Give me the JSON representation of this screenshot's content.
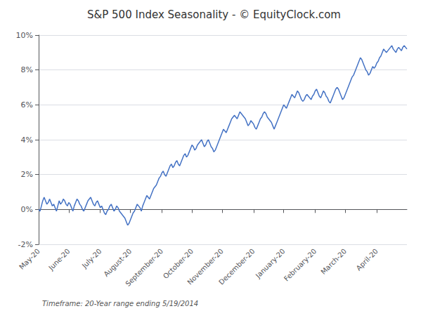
{
  "chart_data": {
    "type": "line",
    "title": "S&P 500 Index Seasonality - © EquityClock.com",
    "footnote": "Timeframe: 20-Year range ending 5/19/2014",
    "color": "#4472C4",
    "grid": true,
    "ylim": [
      -0.02,
      0.1
    ],
    "yticks": [
      {
        "value": -0.02,
        "label": "-2%"
      },
      {
        "value": 0.0,
        "label": "0%"
      },
      {
        "value": 0.02,
        "label": "2%"
      },
      {
        "value": 0.04,
        "label": "4%"
      },
      {
        "value": 0.06,
        "label": "6%"
      },
      {
        "value": 0.08,
        "label": "8%"
      },
      {
        "value": 0.1,
        "label": "10%"
      }
    ],
    "categories": [
      "May-20",
      null,
      null,
      null,
      null,
      null,
      null,
      null,
      null,
      null,
      null,
      null,
      null,
      null,
      null,
      null,
      null,
      null,
      null,
      null,
      null,
      null,
      "June-20",
      null,
      null,
      null,
      null,
      null,
      null,
      null,
      null,
      null,
      null,
      null,
      null,
      null,
      null,
      null,
      null,
      null,
      null,
      null,
      null,
      null,
      null,
      "July-20",
      null,
      null,
      null,
      null,
      null,
      null,
      null,
      null,
      null,
      null,
      null,
      null,
      null,
      null,
      null,
      null,
      null,
      null,
      null,
      null,
      null,
      "August-20",
      null,
      null,
      null,
      null,
      null,
      null,
      null,
      null,
      null,
      null,
      null,
      null,
      null,
      null,
      null,
      null,
      null,
      null,
      null,
      null,
      null,
      null,
      "September-20",
      null,
      null,
      null,
      null,
      null,
      null,
      null,
      null,
      null,
      null,
      null,
      null,
      null,
      null,
      null,
      null,
      null,
      null,
      null,
      null,
      null,
      "October-20",
      null,
      null,
      null,
      null,
      null,
      null,
      null,
      null,
      null,
      null,
      null,
      null,
      null,
      null,
      null,
      null,
      null,
      null,
      null,
      null,
      null,
      "November-20",
      null,
      null,
      null,
      null,
      null,
      null,
      null,
      null,
      null,
      null,
      null,
      null,
      null,
      null,
      null,
      null,
      null,
      null,
      null,
      null,
      null,
      null,
      "December-20",
      null,
      null,
      null,
      null,
      null,
      null,
      null,
      null,
      null,
      null,
      null,
      null,
      null,
      null,
      null,
      null,
      null,
      null,
      null,
      null,
      null,
      "January-20",
      null,
      null,
      null,
      null,
      null,
      null,
      null,
      null,
      null,
      null,
      null,
      null,
      null,
      null,
      null,
      null,
      null,
      null,
      null,
      null,
      null,
      null,
      "February-20",
      null,
      null,
      null,
      null,
      null,
      null,
      null,
      null,
      null,
      null,
      null,
      null,
      null,
      null,
      null,
      null,
      null,
      null,
      null,
      null,
      null,
      "March-20",
      null,
      null,
      null,
      null,
      null,
      null,
      null,
      null,
      null,
      null,
      null,
      null,
      null,
      null,
      null,
      null,
      null,
      null,
      null,
      null,
      null,
      null,
      "April-20",
      null,
      null,
      null,
      null,
      null,
      null,
      null,
      null,
      null,
      null,
      null,
      null,
      null,
      null,
      null,
      null,
      null,
      null,
      null,
      null,
      null,
      null
    ],
    "values": [
      0.0,
      -0.001,
      0.002,
      0.005,
      0.007,
      0.005,
      0.003,
      0.004,
      0.006,
      0.004,
      0.002,
      0.003,
      0.001,
      -0.001,
      0.002,
      0.005,
      0.003,
      0.004,
      0.006,
      0.005,
      0.003,
      0.002,
      0.004,
      0.003,
      0.001,
      -0.001,
      0.002,
      0.004,
      0.006,
      0.005,
      0.003,
      0.002,
      0.0,
      -0.001,
      0.001,
      0.003,
      0.005,
      0.006,
      0.007,
      0.005,
      0.003,
      0.002,
      0.004,
      0.005,
      0.003,
      0.001,
      0.002,
      0.0,
      -0.002,
      -0.003,
      -0.001,
      0.0,
      0.002,
      0.003,
      0.001,
      -0.001,
      0.0,
      0.002,
      0.001,
      -0.001,
      -0.002,
      -0.003,
      -0.004,
      -0.005,
      -0.007,
      -0.009,
      -0.008,
      -0.006,
      -0.004,
      -0.002,
      -0.001,
      0.001,
      0.003,
      0.002,
      0.001,
      -0.001,
      0.002,
      0.004,
      0.006,
      0.008,
      0.007,
      0.006,
      0.008,
      0.01,
      0.012,
      0.013,
      0.014,
      0.016,
      0.018,
      0.019,
      0.021,
      0.022,
      0.02,
      0.019,
      0.021,
      0.023,
      0.025,
      0.026,
      0.024,
      0.025,
      0.027,
      0.028,
      0.026,
      0.025,
      0.027,
      0.029,
      0.031,
      0.032,
      0.03,
      0.031,
      0.033,
      0.035,
      0.037,
      0.036,
      0.034,
      0.035,
      0.037,
      0.038,
      0.039,
      0.04,
      0.038,
      0.036,
      0.037,
      0.039,
      0.04,
      0.038,
      0.036,
      0.035,
      0.033,
      0.034,
      0.036,
      0.038,
      0.04,
      0.042,
      0.044,
      0.046,
      0.045,
      0.044,
      0.046,
      0.048,
      0.05,
      0.052,
      0.053,
      0.054,
      0.053,
      0.052,
      0.054,
      0.056,
      0.055,
      0.054,
      0.053,
      0.052,
      0.05,
      0.048,
      0.049,
      0.051,
      0.05,
      0.049,
      0.047,
      0.046,
      0.048,
      0.05,
      0.052,
      0.053,
      0.055,
      0.056,
      0.055,
      0.053,
      0.052,
      0.051,
      0.05,
      0.048,
      0.046,
      0.048,
      0.05,
      0.052,
      0.054,
      0.056,
      0.058,
      0.06,
      0.059,
      0.058,
      0.06,
      0.062,
      0.064,
      0.066,
      0.065,
      0.064,
      0.066,
      0.068,
      0.067,
      0.065,
      0.063,
      0.062,
      0.063,
      0.065,
      0.066,
      0.065,
      0.064,
      0.063,
      0.065,
      0.066,
      0.068,
      0.069,
      0.067,
      0.065,
      0.064,
      0.066,
      0.068,
      0.067,
      0.065,
      0.064,
      0.062,
      0.061,
      0.063,
      0.065,
      0.067,
      0.069,
      0.07,
      0.069,
      0.067,
      0.065,
      0.063,
      0.064,
      0.066,
      0.068,
      0.07,
      0.072,
      0.074,
      0.076,
      0.077,
      0.079,
      0.081,
      0.083,
      0.085,
      0.087,
      0.086,
      0.084,
      0.082,
      0.08,
      0.079,
      0.077,
      0.078,
      0.08,
      0.082,
      0.081,
      0.082,
      0.084,
      0.085,
      0.087,
      0.088,
      0.09,
      0.092,
      0.091,
      0.09,
      0.091,
      0.092,
      0.093,
      0.094,
      0.092,
      0.091,
      0.09,
      0.092,
      0.093,
      0.092,
      0.091,
      0.093,
      0.094,
      0.093,
      0.092
    ]
  }
}
